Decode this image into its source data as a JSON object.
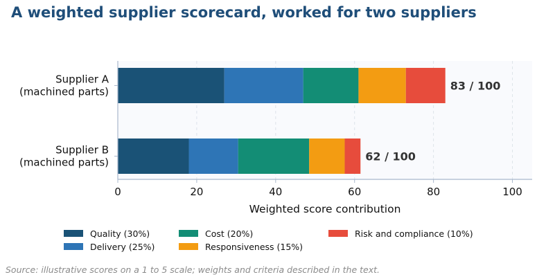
{
  "title": "A weighted supplier scorecard, worked for two suppliers",
  "source": "Source: illustrative scores on a 1 to 5 scale; weights and criteria described in the text.",
  "chart_data": {
    "type": "bar",
    "orientation": "horizontal",
    "stacked": true,
    "categories": [
      [
        "Supplier A",
        "(machined parts)"
      ],
      [
        "Supplier B",
        "(machined parts)"
      ]
    ],
    "series": [
      {
        "name": "Quality (30%)",
        "color": "#1a5276",
        "values": [
          27,
          18
        ]
      },
      {
        "name": "Delivery (25%)",
        "color": "#2e75b6",
        "values": [
          20,
          12.5
        ]
      },
      {
        "name": "Cost (20%)",
        "color": "#138d75",
        "values": [
          14,
          18
        ]
      },
      {
        "name": "Responsiveness (15%)",
        "color": "#f39c12",
        "values": [
          12,
          9
        ]
      },
      {
        "name": "Risk and compliance (10%)",
        "color": "#e74c3c",
        "values": [
          10,
          4
        ]
      }
    ],
    "totals": [
      "83 / 100",
      "62 / 100"
    ],
    "xlabel": "Weighted score contribution",
    "ylabel": "",
    "xlim": [
      0,
      105
    ],
    "xticks": [
      0,
      20,
      40,
      60,
      80,
      100
    ],
    "grid": "vertical dashed",
    "legend_position": "bottom"
  }
}
